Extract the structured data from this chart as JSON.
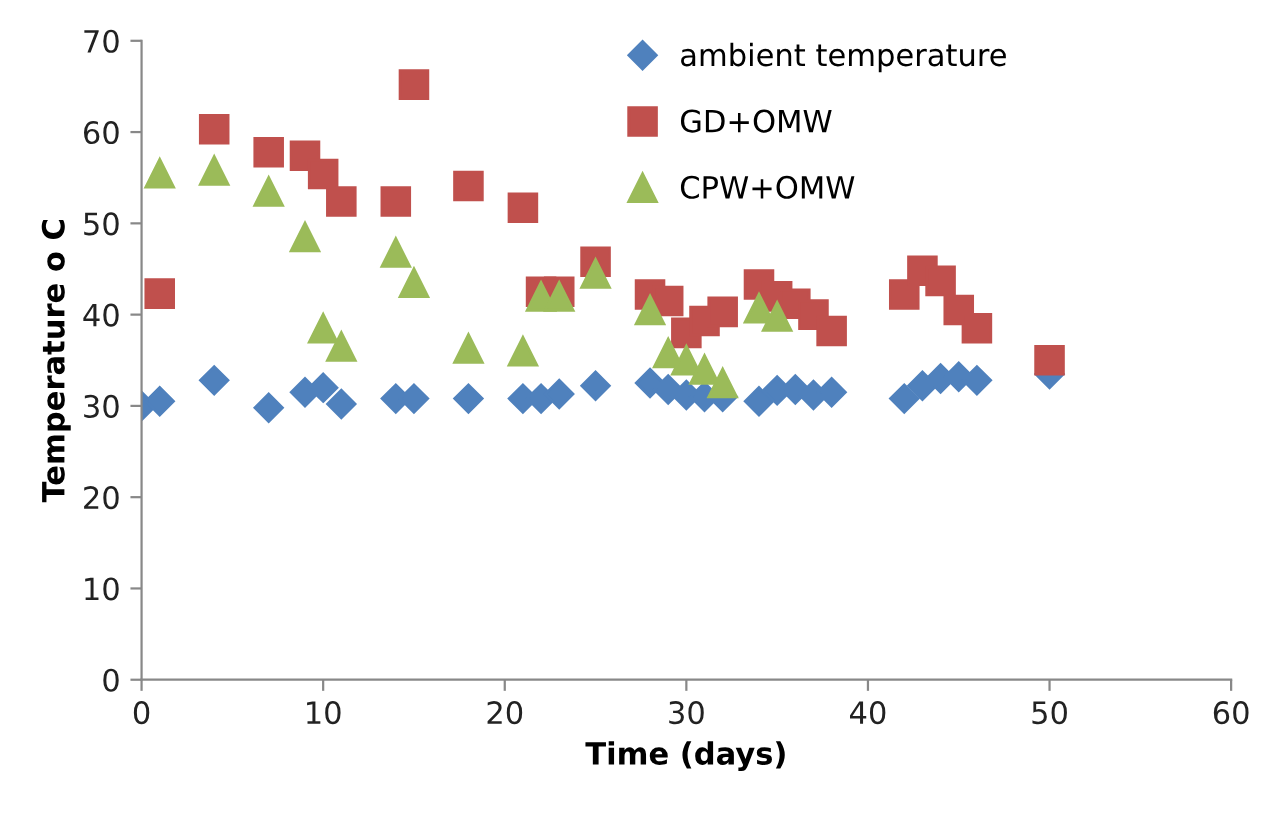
{
  "chart_data": {
    "type": "scatter",
    "xlabel": "Time (days)",
    "ylabel": "Temperature o C",
    "xlim": [
      0,
      60
    ],
    "xticks": [
      0,
      10,
      20,
      30,
      40,
      50,
      60
    ],
    "ylim": [
      0,
      70
    ],
    "yticks": [
      0,
      10,
      20,
      30,
      40,
      50,
      60,
      70
    ],
    "grid": false,
    "legend": "top right",
    "series": [
      {
        "name": "ambient temperature",
        "color": "#4f81bd",
        "marker": "diamond",
        "x": [
          0,
          1,
          4,
          7,
          9,
          10,
          11,
          14,
          15,
          18,
          21,
          22,
          23,
          25,
          28,
          29,
          30,
          31,
          32,
          34,
          35,
          36,
          37,
          38,
          42,
          43,
          44,
          45,
          46,
          50
        ],
        "values": [
          30,
          30.5,
          32.8,
          29.8,
          31.5,
          32,
          30.2,
          30.8,
          30.8,
          30.8,
          30.8,
          30.8,
          31.3,
          32.2,
          32.5,
          31.8,
          31.2,
          31,
          31,
          30.5,
          31.7,
          31.8,
          31.2,
          31.5,
          30.8,
          32.2,
          33,
          33.2,
          32.8,
          33.5
        ]
      },
      {
        "name": "GD+OMW",
        "color": "#c0504d",
        "marker": "square",
        "x": [
          1,
          4,
          7,
          9,
          10,
          11,
          14,
          15,
          18,
          21,
          22,
          23,
          25,
          28,
          29,
          30,
          31,
          32,
          34,
          35,
          36,
          37,
          38,
          42,
          43,
          44,
          45,
          46,
          50
        ],
        "values": [
          42.3,
          60.3,
          57.8,
          57.4,
          55.4,
          52.4,
          52.4,
          65.2,
          54.1,
          51.7,
          42.5,
          42.5,
          45.8,
          42.2,
          41.5,
          38,
          39.3,
          40.3,
          43.3,
          42,
          41.2,
          40,
          38.2,
          42.2,
          44.8,
          43.7,
          40.5,
          38.5,
          35
        ]
      },
      {
        "name": "CPW+OMW",
        "color": "#9bbb59",
        "marker": "triangle",
        "x": [
          1,
          4,
          7,
          9,
          10,
          11,
          14,
          15,
          18,
          21,
          22,
          23,
          25,
          28,
          29,
          30,
          31,
          32,
          34,
          35
        ],
        "values": [
          55.5,
          55.8,
          53.5,
          48.5,
          38.5,
          36.5,
          46.8,
          43.5,
          36.3,
          36,
          42,
          42,
          44.5,
          40.5,
          35.8,
          35,
          34,
          32.5,
          40.7,
          39.8
        ]
      }
    ]
  }
}
